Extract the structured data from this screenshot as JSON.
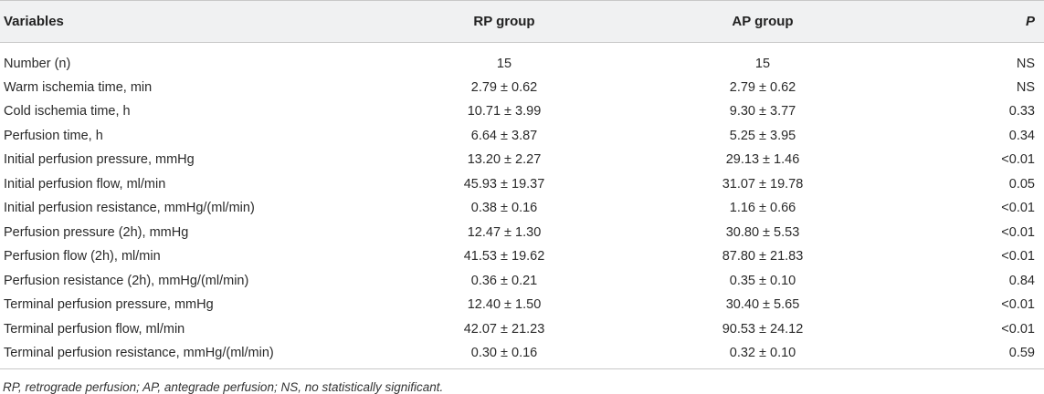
{
  "table": {
    "headers": {
      "variables": "Variables",
      "rp": "RP group",
      "ap": "AP group",
      "p": "P"
    },
    "rows": [
      {
        "variable": "Number (n)",
        "rp": "15",
        "ap": "15",
        "p": "NS"
      },
      {
        "variable": "Warm ischemia time, min",
        "rp": "2.79 ± 0.62",
        "ap": "2.79 ± 0.62",
        "p": "NS"
      },
      {
        "variable": "Cold ischemia time, h",
        "rp": "10.71 ± 3.99",
        "ap": "9.30 ± 3.77",
        "p": "0.33"
      },
      {
        "variable": "Perfusion time, h",
        "rp": "6.64 ± 3.87",
        "ap": "5.25 ± 3.95",
        "p": "0.34"
      },
      {
        "variable": "Initial perfusion pressure, mmHg",
        "rp": "13.20 ± 2.27",
        "ap": "29.13 ± 1.46",
        "p": "<0.01"
      },
      {
        "variable": "Initial perfusion flow, ml/min",
        "rp": "45.93 ± 19.37",
        "ap": "31.07 ± 19.78",
        "p": "0.05"
      },
      {
        "variable": "Initial perfusion resistance, mmHg/(ml/min)",
        "rp": "0.38 ± 0.16",
        "ap": "1.16 ± 0.66",
        "p": "<0.01"
      },
      {
        "variable": "Perfusion pressure (2h), mmHg",
        "rp": "12.47 ± 1.30",
        "ap": "30.80 ± 5.53",
        "p": "<0.01"
      },
      {
        "variable": "Perfusion flow (2h), ml/min",
        "rp": "41.53 ± 19.62",
        "ap": "87.80 ± 21.83",
        "p": "<0.01"
      },
      {
        "variable": "Perfusion resistance (2h), mmHg/(ml/min)",
        "rp": "0.36 ± 0.21",
        "ap": "0.35 ± 0.10",
        "p": "0.84"
      },
      {
        "variable": "Terminal perfusion pressure, mmHg",
        "rp": "12.40 ± 1.50",
        "ap": "30.40 ± 5.65",
        "p": "<0.01"
      },
      {
        "variable": "Terminal perfusion flow, ml/min",
        "rp": "42.07 ± 21.23",
        "ap": "90.53 ± 24.12",
        "p": "<0.01"
      },
      {
        "variable": "Terminal perfusion resistance, mmHg/(ml/min)",
        "rp": "0.30 ± 0.16",
        "ap": "0.32 ± 0.10",
        "p": "0.59"
      }
    ]
  },
  "footnote": "RP, retrograde perfusion; AP, antegrade perfusion; NS, no statistically significant."
}
